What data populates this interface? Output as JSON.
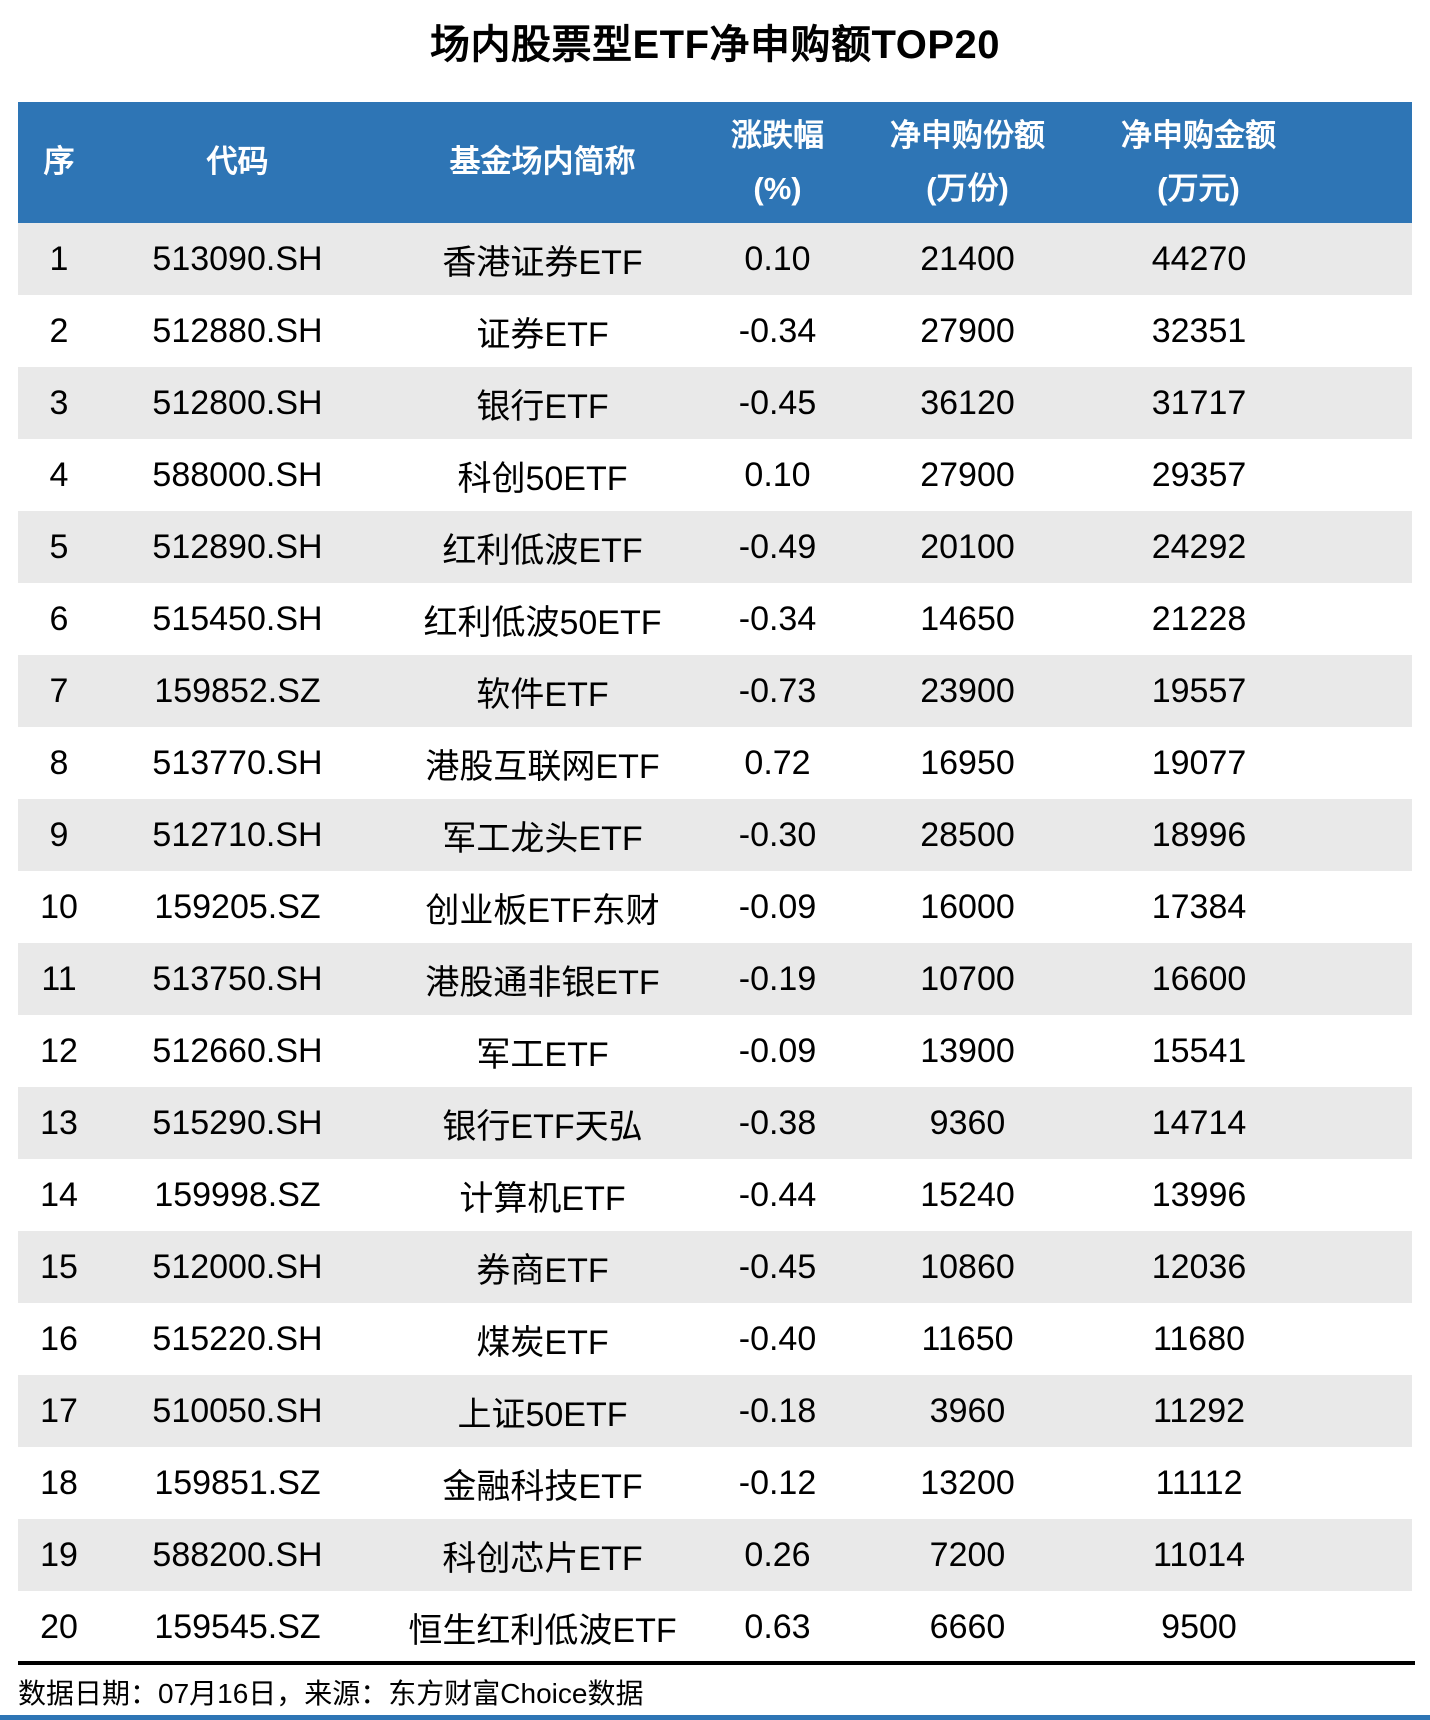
{
  "chart_data": {
    "type": "table",
    "title": "场内股票型ETF净申购额TOP20",
    "columns": [
      {
        "key": "index",
        "label": "序",
        "unit": ""
      },
      {
        "key": "code",
        "label": "代码",
        "unit": ""
      },
      {
        "key": "name",
        "label": "基金场内简称",
        "unit": ""
      },
      {
        "key": "change_pct",
        "label": "涨跌幅",
        "unit": "(%)"
      },
      {
        "key": "net_shares",
        "label": "净申购份额",
        "unit": "(万份)"
      },
      {
        "key": "net_amount",
        "label": "净申购金额",
        "unit": "(万元)"
      }
    ],
    "rows": [
      [
        "1",
        "513090.SH",
        "香港证券ETF",
        "0.10",
        "21400",
        "44270"
      ],
      [
        "2",
        "512880.SH",
        "证券ETF",
        "-0.34",
        "27900",
        "32351"
      ],
      [
        "3",
        "512800.SH",
        "银行ETF",
        "-0.45",
        "36120",
        "31717"
      ],
      [
        "4",
        "588000.SH",
        "科创50ETF",
        "0.10",
        "27900",
        "29357"
      ],
      [
        "5",
        "512890.SH",
        "红利低波ETF",
        "-0.49",
        "20100",
        "24292"
      ],
      [
        "6",
        "515450.SH",
        "红利低波50ETF",
        "-0.34",
        "14650",
        "21228"
      ],
      [
        "7",
        "159852.SZ",
        "软件ETF",
        "-0.73",
        "23900",
        "19557"
      ],
      [
        "8",
        "513770.SH",
        "港股互联网ETF",
        "0.72",
        "16950",
        "19077"
      ],
      [
        "9",
        "512710.SH",
        "军工龙头ETF",
        "-0.30",
        "28500",
        "18996"
      ],
      [
        "10",
        "159205.SZ",
        "创业板ETF东财",
        "-0.09",
        "16000",
        "17384"
      ],
      [
        "11",
        "513750.SH",
        "港股通非银ETF",
        "-0.19",
        "10700",
        "16600"
      ],
      [
        "12",
        "512660.SH",
        "军工ETF",
        "-0.09",
        "13900",
        "15541"
      ],
      [
        "13",
        "515290.SH",
        "银行ETF天弘",
        "-0.38",
        "9360",
        "14714"
      ],
      [
        "14",
        "159998.SZ",
        "计算机ETF",
        "-0.44",
        "15240",
        "13996"
      ],
      [
        "15",
        "512000.SH",
        "券商ETF",
        "-0.45",
        "10860",
        "12036"
      ],
      [
        "16",
        "515220.SH",
        "煤炭ETF",
        "-0.40",
        "11650",
        "11680"
      ],
      [
        "17",
        "510050.SH",
        "上证50ETF",
        "-0.18",
        "3960",
        "11292"
      ],
      [
        "18",
        "159851.SZ",
        "金融科技ETF",
        "-0.12",
        "13200",
        "11112"
      ],
      [
        "19",
        "588200.SH",
        "科创芯片ETF",
        "0.26",
        "7200",
        "11014"
      ],
      [
        "20",
        "159545.SZ",
        "恒生红利低波ETF",
        "0.63",
        "6660",
        "9500"
      ]
    ],
    "layout_hints": {
      "stripe_odd_rows": true,
      "header_two_line_units": true,
      "all_cells_centered": true
    }
  },
  "footer": {
    "note": "数据日期：07月16日，来源：东方财富Choice数据"
  },
  "colors": {
    "header_bg": "#2E75B5",
    "header_text": "#FFFFFF",
    "row_stripe": "#E9E9E9",
    "row_alt": "#FFFFFF",
    "body_text": "#000000",
    "divider": "#000000",
    "bottom_accent_bar": "#2E75B5"
  }
}
